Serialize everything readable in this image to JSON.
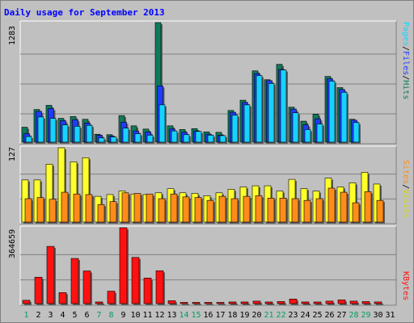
{
  "title": "Daily usage for September 2013",
  "colors": {
    "hits": "#0f7a5b",
    "files": "#1e3cff",
    "pages": "#16d2ff",
    "visits": "#ffff2a",
    "sites": "#ff8c1a",
    "kbytes": "#ff1111",
    "weekend_day": "#00a060",
    "weekday": "#000000"
  },
  "legend": {
    "top": [
      "Pages",
      "/",
      "Files",
      "/",
      "Hits"
    ],
    "middle": [
      "Sites",
      "/",
      "Visits"
    ],
    "bottom": [
      "KBytes"
    ]
  },
  "y_max_labels": {
    "top": "1283",
    "middle": "127",
    "bottom": "364659"
  },
  "chart_data": [
    {
      "type": "bar",
      "title": "Daily usage for September 2013",
      "categories": [
        "1",
        "2",
        "3",
        "4",
        "5",
        "6",
        "7",
        "8",
        "9",
        "10",
        "11",
        "12",
        "13",
        "14",
        "15",
        "16",
        "17",
        "18",
        "19",
        "20",
        "21",
        "22",
        "23",
        "24",
        "25",
        "26",
        "27",
        "28",
        "29",
        "30",
        "31"
      ],
      "weekend_days": [
        "1",
        "7",
        "8",
        "14",
        "15",
        "21",
        "22",
        "28",
        "29"
      ],
      "ylim": [
        0,
        1283
      ],
      "series": [
        {
          "name": "Hits",
          "values": [
            160,
            350,
            395,
            255,
            275,
            245,
            85,
            80,
            285,
            175,
            140,
            1283,
            175,
            135,
            145,
            110,
            105,
            340,
            450,
            765,
            670,
            835,
            375,
            225,
            300,
            705,
            585,
            245,
            0,
            0,
            0
          ]
        },
        {
          "name": "Files",
          "values": [
            90,
            330,
            360,
            230,
            240,
            205,
            75,
            65,
            215,
            120,
            110,
            605,
            140,
            105,
            120,
            85,
            75,
            320,
            425,
            735,
            660,
            780,
            355,
            185,
            250,
            680,
            565,
            235,
            0,
            0,
            0
          ]
        },
        {
          "name": "Pages",
          "values": [
            60,
            270,
            255,
            185,
            170,
            180,
            45,
            55,
            150,
            90,
            75,
            400,
            120,
            80,
            115,
            75,
            70,
            290,
            400,
            715,
            630,
            775,
            315,
            135,
            195,
            655,
            535,
            210,
            0,
            0,
            0
          ]
        }
      ]
    },
    {
      "type": "bar",
      "categories": [
        "1",
        "2",
        "3",
        "4",
        "5",
        "6",
        "7",
        "8",
        "9",
        "10",
        "11",
        "12",
        "13",
        "14",
        "15",
        "16",
        "17",
        "18",
        "19",
        "20",
        "21",
        "22",
        "23",
        "24",
        "25",
        "26",
        "27",
        "28",
        "29",
        "30",
        "31"
      ],
      "ylim": [
        0,
        127
      ],
      "series": [
        {
          "name": "Visits",
          "values": [
            72,
            72,
            99,
            127,
            103,
            110,
            44,
            47,
            53,
            48,
            47,
            50,
            57,
            50,
            49,
            45,
            50,
            56,
            60,
            62,
            62,
            53,
            73,
            57,
            53,
            75,
            60,
            67,
            85,
            65,
            0
          ]
        },
        {
          "name": "Sites",
          "values": [
            40,
            42,
            39,
            51,
            48,
            47,
            30,
            35,
            50,
            49,
            48,
            40,
            48,
            43,
            42,
            37,
            44,
            40,
            44,
            45,
            41,
            41,
            40,
            37,
            40,
            58,
            51,
            33,
            52,
            37,
            0
          ]
        }
      ]
    },
    {
      "type": "bar",
      "categories": [
        "1",
        "2",
        "3",
        "4",
        "5",
        "6",
        "7",
        "8",
        "9",
        "10",
        "11",
        "12",
        "13",
        "14",
        "15",
        "16",
        "17",
        "18",
        "19",
        "20",
        "21",
        "22",
        "23",
        "24",
        "25",
        "26",
        "27",
        "28",
        "29",
        "30",
        "31"
      ],
      "ylim": [
        0,
        364659
      ],
      "series": [
        {
          "name": "KBytes",
          "values": [
            16000,
            127000,
            275000,
            53000,
            217000,
            157000,
            8000,
            60000,
            364659,
            222000,
            123000,
            158000,
            14000,
            6000,
            6000,
            6000,
            6000,
            8000,
            8000,
            12000,
            8000,
            10000,
            22000,
            8000,
            8000,
            12000,
            18000,
            12000,
            10000,
            8000,
            0
          ]
        }
      ]
    }
  ]
}
